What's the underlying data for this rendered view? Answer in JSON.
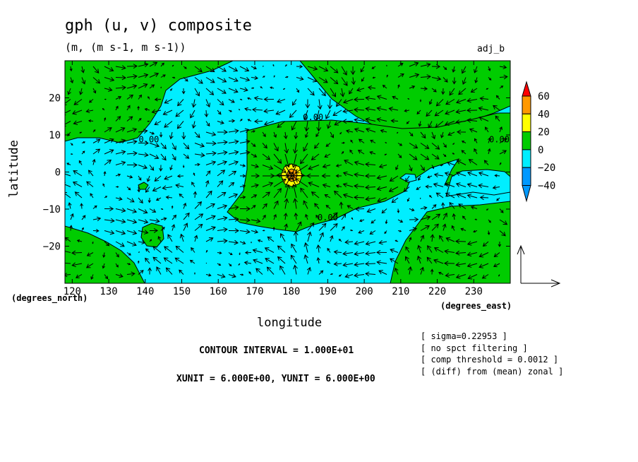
{
  "chart_data": {
    "type": "heatmap",
    "title": "gph (u, v) composite",
    "subtitle": "(m, (m s-1, m s-1))",
    "tag": "adj_b",
    "xlabel": "longitude",
    "ylabel": "latitude",
    "x_units_label": "(degrees_east)",
    "y_units_label": "(degrees_north)",
    "xlim": [
      118,
      240
    ],
    "ylim": [
      -30,
      30
    ],
    "xticks": [
      "120",
      "130",
      "140",
      "150",
      "160",
      "170",
      "180",
      "190",
      "200",
      "210",
      "220",
      "230"
    ],
    "xtick_values": [
      120,
      130,
      140,
      150,
      160,
      170,
      180,
      190,
      200,
      210,
      220,
      230
    ],
    "yticks": [
      "20",
      "10",
      "0",
      "−10",
      "−20"
    ],
    "ytick_values": [
      20,
      10,
      0,
      -10,
      -20
    ],
    "colorbar": {
      "labels": [
        "60",
        "40",
        "20",
        "0",
        "−20",
        "−40"
      ],
      "label_values": [
        60,
        40,
        20,
        0,
        -20,
        -40
      ],
      "colors": [
        "#ff0000",
        "#ff9900",
        "#ffff00",
        "#00cc00",
        "#00eeff",
        "#0099ff"
      ]
    },
    "contour_labels": [
      {
        "text": "0.00",
        "lon": 141,
        "lat": 8
      },
      {
        "text": "0.00",
        "lon": 186,
        "lat": 14
      },
      {
        "text": "0.00",
        "lon": 190,
        "lat": -13
      },
      {
        "text": "0.00",
        "lon": 237,
        "lat": 8
      }
    ],
    "regions": {
      "positive_color": "#00cc00",
      "negative_color": "#00eeff",
      "high_color": "#ffff00",
      "peak_color": "#ff9900",
      "center_lon": 180,
      "center_lat": -1
    },
    "vector_reference": {
      "xunit": "6.000E+00",
      "yunit": "6.000E+00"
    }
  },
  "footer": {
    "contour_interval": "CONTOUR INTERVAL = 1.000E+01",
    "units": "XUNIT = 6.000E+00, YUNIT = 6.000E+00"
  },
  "notes": [
    "[ sigma=0.22953 ]",
    "[ no spct filtering ]",
    "[ comp threshold = 0.0012 ]",
    "[ (diff) from (mean) zonal ]"
  ]
}
